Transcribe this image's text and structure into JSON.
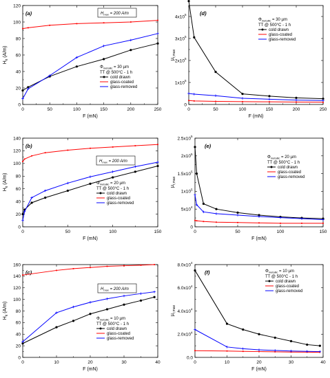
{
  "chart_data": [
    {
      "type": "line",
      "panel": "(a)",
      "xlabel": "F (mN)",
      "ylabel": "H_k (A/m)",
      "xlim": [
        0,
        250
      ],
      "ylim": [
        0,
        120
      ],
      "xticks": [
        0,
        50,
        100,
        150,
        200,
        250
      ],
      "yticks": [
        0,
        20,
        40,
        60,
        80,
        100,
        120
      ],
      "grid": false,
      "boxed_note": "H_max = 200 A/m",
      "legend_placement": "bottom-right",
      "legend_header": [
        "Φmetallic = 30 µm",
        "TT @ 500°C - 1 h"
      ],
      "series": [
        {
          "name": "cold drawn",
          "color": "#000000",
          "x": [
            0,
            10,
            50,
            100,
            150,
            200,
            250
          ],
          "y": [
            17,
            21,
            34,
            46,
            55,
            66,
            74
          ]
        },
        {
          "name": "glass-coated",
          "color": "#ff0000",
          "x": [
            0,
            10,
            50,
            100,
            150,
            200,
            250
          ],
          "y": [
            92,
            93,
            96,
            98,
            99,
            100,
            102
          ]
        },
        {
          "name": "glass-removed",
          "color": "#0000ff",
          "x": [
            0,
            10,
            50,
            100,
            150,
            200,
            250
          ],
          "y": [
            7,
            19,
            35,
            57,
            71,
            78,
            86
          ]
        }
      ]
    },
    {
      "type": "line",
      "panel": "(d)",
      "xlabel": "F (mN)",
      "ylabel": "μr,max",
      "xlim": [
        0,
        250
      ],
      "ylim": [
        0,
        450000
      ],
      "xticks": [
        0,
        50,
        100,
        150,
        200,
        250
      ],
      "yticks": [
        0,
        100000,
        200000,
        300000,
        400000
      ],
      "ytick_labels": [
        "0",
        "1x10",
        "2x10",
        "3x10",
        "4x10"
      ],
      "ytick_exponent": "5",
      "grid": false,
      "legend_placement": "top-right",
      "legend_header": [
        "Φmetallic = 30 µm",
        "TT @ 500°C - 1 h"
      ],
      "series": [
        {
          "name": "cold drawn",
          "color": "#000000",
          "x": [
            0,
            10,
            50,
            100,
            150,
            200,
            250
          ],
          "y": [
            470000,
            305000,
            148000,
            48000,
            38000,
            30000,
            26000
          ]
        },
        {
          "name": "glass-coated",
          "color": "#ff0000",
          "x": [
            0,
            10,
            50,
            100,
            150,
            200,
            250
          ],
          "y": [
            18000,
            16000,
            14000,
            13000,
            12000,
            11000,
            10000
          ]
        },
        {
          "name": "glass-removed",
          "color": "#0000ff",
          "x": [
            0,
            10,
            50,
            100,
            150,
            200,
            250
          ],
          "y": [
            50000,
            47000,
            40000,
            28000,
            24000,
            20000,
            18000
          ]
        }
      ]
    },
    {
      "type": "line",
      "panel": "(b)",
      "xlabel": "F (mN)",
      "ylabel": "H_k (A/m)",
      "xlim": [
        0,
        150
      ],
      "ylim": [
        0,
        140
      ],
      "xticks": [
        0,
        50,
        100,
        150
      ],
      "yticks": [
        0,
        20,
        40,
        60,
        80,
        100,
        120,
        140
      ],
      "grid": false,
      "boxed_note": "H_max = 200 A/m",
      "legend_placement": "bottom-right",
      "legend_header": [
        "Φmetallic = 20 µm",
        "TT @ 500°C - 1 h"
      ],
      "series": [
        {
          "name": "cold drawn",
          "color": "#000000",
          "x": [
            0,
            2,
            10,
            25,
            50,
            75,
            100,
            125,
            150
          ],
          "y": [
            20,
            27,
            38,
            46,
            57,
            68,
            78,
            87,
            96
          ]
        },
        {
          "name": "glass-coated",
          "color": "#ff0000",
          "x": [
            0,
            2,
            10,
            25,
            50,
            75,
            100,
            125,
            150
          ],
          "y": [
            103,
            107,
            112,
            117,
            121,
            124,
            126,
            128,
            130
          ]
        },
        {
          "name": "glass-removed",
          "color": "#0000ff",
          "x": [
            0,
            2,
            10,
            25,
            50,
            75,
            100,
            125,
            150
          ],
          "y": [
            10,
            24,
            46,
            57,
            69,
            79,
            87,
            95,
            102
          ]
        }
      ]
    },
    {
      "type": "line",
      "panel": "(e)",
      "xlabel": "F (mN)",
      "ylabel": "μr,max",
      "xlim": [
        0,
        150
      ],
      "ylim": [
        0,
        250000
      ],
      "xticks": [
        0,
        50,
        100,
        150
      ],
      "yticks": [
        0,
        50000,
        100000,
        150000,
        200000,
        250000
      ],
      "ytick_labels": [
        "0",
        "5x10",
        "1x10",
        "1.5x10",
        "2x10",
        "2.5x10"
      ],
      "ytick_exponents": [
        "",
        "4",
        "5",
        "5",
        "5",
        "5"
      ],
      "grid": false,
      "legend_placement": "right",
      "legend_header": [
        "Φmetallic = 20 µm",
        "TT @ 500°C - 1 h"
      ],
      "series": [
        {
          "name": "cold drawn",
          "color": "#000000",
          "x": [
            0,
            2,
            10,
            25,
            50,
            75,
            100,
            125,
            150
          ],
          "y": [
            225000,
            150000,
            65000,
            50000,
            40000,
            33000,
            28000,
            25000,
            23000
          ]
        },
        {
          "name": "glass-coated",
          "color": "#ff0000",
          "x": [
            0,
            2,
            10,
            25,
            50,
            75,
            100,
            125,
            150
          ],
          "y": [
            18000,
            17000,
            15000,
            13000,
            12000,
            11000,
            10000,
            10000,
            10000
          ]
        },
        {
          "name": "glass-removed",
          "color": "#0000ff",
          "x": [
            0,
            2,
            10,
            25,
            50,
            75,
            100,
            125,
            150
          ],
          "y": [
            90000,
            62000,
            42000,
            37000,
            33000,
            29000,
            26000,
            23000,
            20000
          ]
        }
      ]
    },
    {
      "type": "line",
      "panel": "(c)",
      "xlabel": "F (mN)",
      "ylabel": "H_k (A/m)",
      "xlim": [
        0,
        40
      ],
      "ylim": [
        0,
        160
      ],
      "xticks": [
        0,
        10,
        20,
        30,
        40
      ],
      "yticks": [
        0,
        20,
        40,
        60,
        80,
        100,
        120,
        140,
        160
      ],
      "grid": false,
      "boxed_note": "H_max = 200 A/m",
      "legend_placement": "bottom-right",
      "legend_header": [
        "Φmetallic = 10 µm",
        "TT @ 500°C - 1 h"
      ],
      "series": [
        {
          "name": "cold drawn",
          "color": "#000000",
          "x": [
            0,
            10,
            15,
            20,
            25,
            30,
            35,
            39
          ],
          "y": [
            24,
            52,
            63,
            75,
            83,
            91,
            98,
            104
          ]
        },
        {
          "name": "glass-coated",
          "color": "#ff0000",
          "x": [
            0,
            10,
            15,
            20,
            25,
            30,
            35,
            39
          ],
          "y": [
            142,
            150,
            153,
            155,
            157,
            158,
            159,
            160
          ]
        },
        {
          "name": "glass-removed",
          "color": "#0000ff",
          "x": [
            0,
            10,
            15,
            20,
            25,
            30,
            35,
            39
          ],
          "y": [
            27,
            77,
            87,
            95,
            101,
            106,
            110,
            113
          ]
        }
      ]
    },
    {
      "type": "line",
      "panel": "(f)",
      "xlabel": "F (mN)",
      "ylabel": "μr,max",
      "xlim": [
        0,
        40
      ],
      "ylim": [
        0,
        80000
      ],
      "xticks": [
        0,
        10,
        20,
        30,
        40
      ],
      "yticks": [
        0,
        20000,
        40000,
        60000,
        80000
      ],
      "ytick_labels": [
        "0.0",
        "2.0x10",
        "4.0x10",
        "6.0x10",
        "8.0x10"
      ],
      "ytick_exponent": "4",
      "grid": false,
      "legend_placement": "top-right",
      "legend_header": [
        "Φmetallic = 10 µm",
        "TT @ 500°C - 1 h"
      ],
      "series": [
        {
          "name": "cold drawn",
          "color": "#000000",
          "x": [
            0,
            10,
            15,
            20,
            25,
            30,
            35,
            39
          ],
          "y": [
            75000,
            29000,
            24000,
            20000,
            17000,
            14000,
            11000,
            10000
          ]
        },
        {
          "name": "glass-coated",
          "color": "#ff0000",
          "x": [
            0,
            10,
            15,
            20,
            25,
            30,
            35,
            39
          ],
          "y": [
            5800,
            5500,
            5200,
            5000,
            4800,
            4600,
            4500,
            4400
          ]
        },
        {
          "name": "glass-removed",
          "color": "#0000ff",
          "x": [
            0,
            10,
            15,
            20,
            25,
            30,
            35,
            39
          ],
          "y": [
            24000,
            9000,
            7500,
            6500,
            6000,
            5500,
            5200,
            5000
          ]
        }
      ]
    }
  ]
}
